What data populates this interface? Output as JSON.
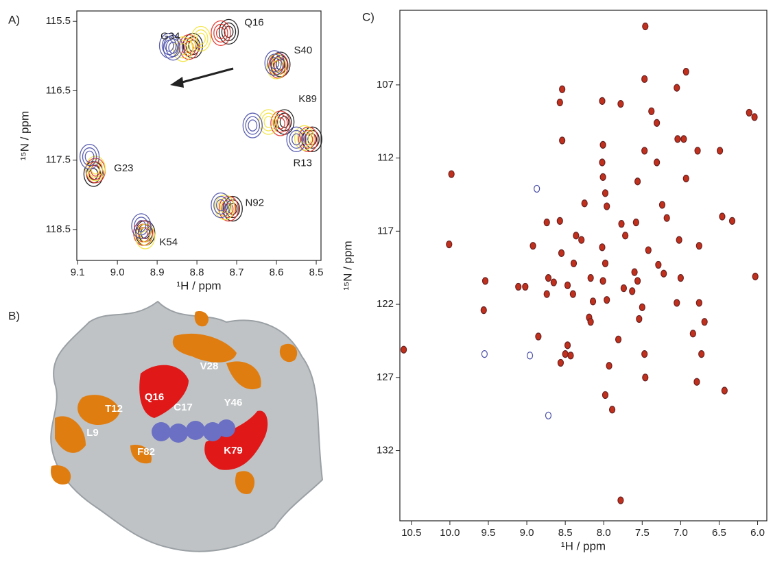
{
  "chart_data": [
    {
      "type": "contour",
      "panel_label": "A)",
      "x_label": "¹H / ppm",
      "y_label": "¹⁵N / ppm",
      "xlim": [
        9.102,
        8.488
      ],
      "ylim": [
        115.35,
        118.945
      ],
      "xticks": [
        9.1,
        {
          "value": 9.0,
          "label": "9.0"
        },
        8.9,
        8.8,
        8.7,
        8.6,
        8.5
      ],
      "yticks": [
        115.5,
        116.5,
        117.5,
        118.5
      ],
      "peak_labels": [
        "Q16",
        "G34",
        "S40",
        "K89",
        "R13",
        "G23",
        "N92",
        "K54"
      ],
      "series": [
        {
          "color": "#111111",
          "x": [
            8.72,
            8.81,
            8.59,
            8.58,
            8.51,
            9.06,
            8.71,
            8.93
          ],
          "values": [
            115.65,
            115.85,
            116.12,
            116.95,
            117.2,
            117.7,
            118.2,
            118.55
          ]
        },
        {
          "color": "#e02a20",
          "x": [
            8.74,
            8.82,
            8.595,
            8.59,
            8.52,
            9.055,
            8.72,
            8.935
          ],
          "values": [
            115.67,
            115.87,
            116.14,
            116.97,
            117.2,
            117.65,
            118.2,
            118.55
          ]
        },
        {
          "color": "#f2e23a",
          "x": [
            8.79,
            8.835,
            8.6,
            8.62,
            8.53,
            9.055,
            8.73,
            8.93
          ],
          "values": [
            115.75,
            115.9,
            116.15,
            116.95,
            117.18,
            117.62,
            118.18,
            118.6
          ]
        },
        {
          "color": "#4a4fa8",
          "x": [
            8.87,
            8.86,
            8.605,
            8.66,
            8.55,
            9.07,
            8.74,
            8.94
          ],
          "values": [
            115.85,
            115.88,
            116.1,
            117.0,
            117.2,
            117.45,
            118.15,
            118.45
          ]
        }
      ]
    },
    {
      "type": "scatter",
      "panel_label": "C)",
      "x_label": "¹H / ppm",
      "y_label": "¹⁵N / ppm",
      "xlim": [
        10.65,
        5.88
      ],
      "ylim": [
        101.9,
        136.8
      ],
      "xticks": [
        10.5,
        {
          "value": 10.0,
          "label": "10.0"
        },
        9.5,
        {
          "value": 9.0,
          "label": "9.0"
        },
        8.5,
        {
          "value": 8.0,
          "label": "8.0"
        },
        7.5,
        {
          "value": 7.0,
          "label": "7.0"
        },
        6.5,
        {
          "value": 6.0,
          "label": "6.0"
        }
      ],
      "yticks": [
        107,
        112,
        117,
        122,
        127,
        132
      ],
      "series": [
        {
          "color": "#c0301c",
          "x": [
            7.46,
            6.93,
            8.54,
            7.05,
            7.47,
            8.57,
            7.78,
            8.02,
            7.38,
            7.31,
            6.11,
            6.04,
            7.04,
            6.96,
            8.54,
            8.01,
            7.47,
            6.78,
            6.49,
            8.02,
            7.31,
            9.98,
            7.56,
            8.01,
            6.93,
            7.98,
            8.25,
            7.96,
            7.24,
            6.46,
            6.33,
            7.18,
            8.57,
            8.74,
            7.77,
            7.58,
            8.36,
            8.29,
            7.72,
            7.02,
            10.01,
            8.02,
            8.92,
            8.55,
            7.42,
            6.76,
            7.29,
            7.98,
            8.39,
            7.22,
            7.6,
            9.54,
            8.72,
            8.65,
            8.17,
            8.01,
            7.56,
            7.0,
            6.03,
            9.11,
            9.02,
            8.47,
            8.4,
            8.74,
            7.74,
            7.63,
            7.96,
            8.14,
            9.56,
            7.05,
            6.76,
            7.5,
            8.19,
            8.17,
            7.54,
            6.84,
            6.69,
            8.85,
            7.81,
            8.47,
            8.5,
            8.43,
            8.56,
            7.47,
            6.73,
            7.93,
            10.6,
            7.46,
            6.79,
            6.43,
            7.98,
            7.89,
            7.78
          ],
          "values": [
            103.0,
            106.1,
            107.3,
            107.2,
            106.6,
            108.2,
            108.3,
            108.1,
            108.8,
            109.6,
            108.9,
            109.2,
            110.7,
            110.7,
            110.8,
            111.1,
            111.5,
            111.5,
            111.5,
            112.3,
            112.3,
            113.1,
            113.6,
            113.3,
            113.4,
            114.4,
            115.1,
            115.3,
            115.2,
            116.0,
            116.3,
            116.1,
            116.3,
            116.4,
            116.5,
            116.4,
            117.3,
            117.6,
            117.3,
            117.6,
            117.9,
            118.1,
            118.0,
            118.5,
            118.3,
            118.0,
            119.3,
            119.2,
            119.2,
            119.9,
            119.8,
            120.4,
            120.2,
            120.5,
            120.2,
            120.4,
            120.4,
            120.2,
            120.1,
            120.8,
            120.8,
            120.7,
            121.3,
            121.3,
            120.9,
            121.1,
            121.7,
            121.8,
            122.4,
            121.9,
            121.9,
            122.2,
            122.9,
            123.2,
            123.0,
            124.0,
            123.2,
            124.2,
            124.4,
            124.8,
            125.4,
            125.5,
            126.0,
            125.4,
            125.4,
            126.2,
            125.1,
            127.0,
            127.3,
            127.9,
            128.2,
            129.2,
            135.4
          ]
        },
        {
          "color": "#4a4fa8",
          "x": [
            8.87,
            9.55,
            8.96,
            8.72
          ],
          "values": [
            114.1,
            125.4,
            125.5,
            129.6
          ]
        }
      ]
    }
  ],
  "structure": {
    "panel_label": "B)",
    "labels": [
      "Q16",
      "V28",
      "T12",
      "C17",
      "Y46",
      "L9",
      "F82",
      "K79"
    ]
  }
}
